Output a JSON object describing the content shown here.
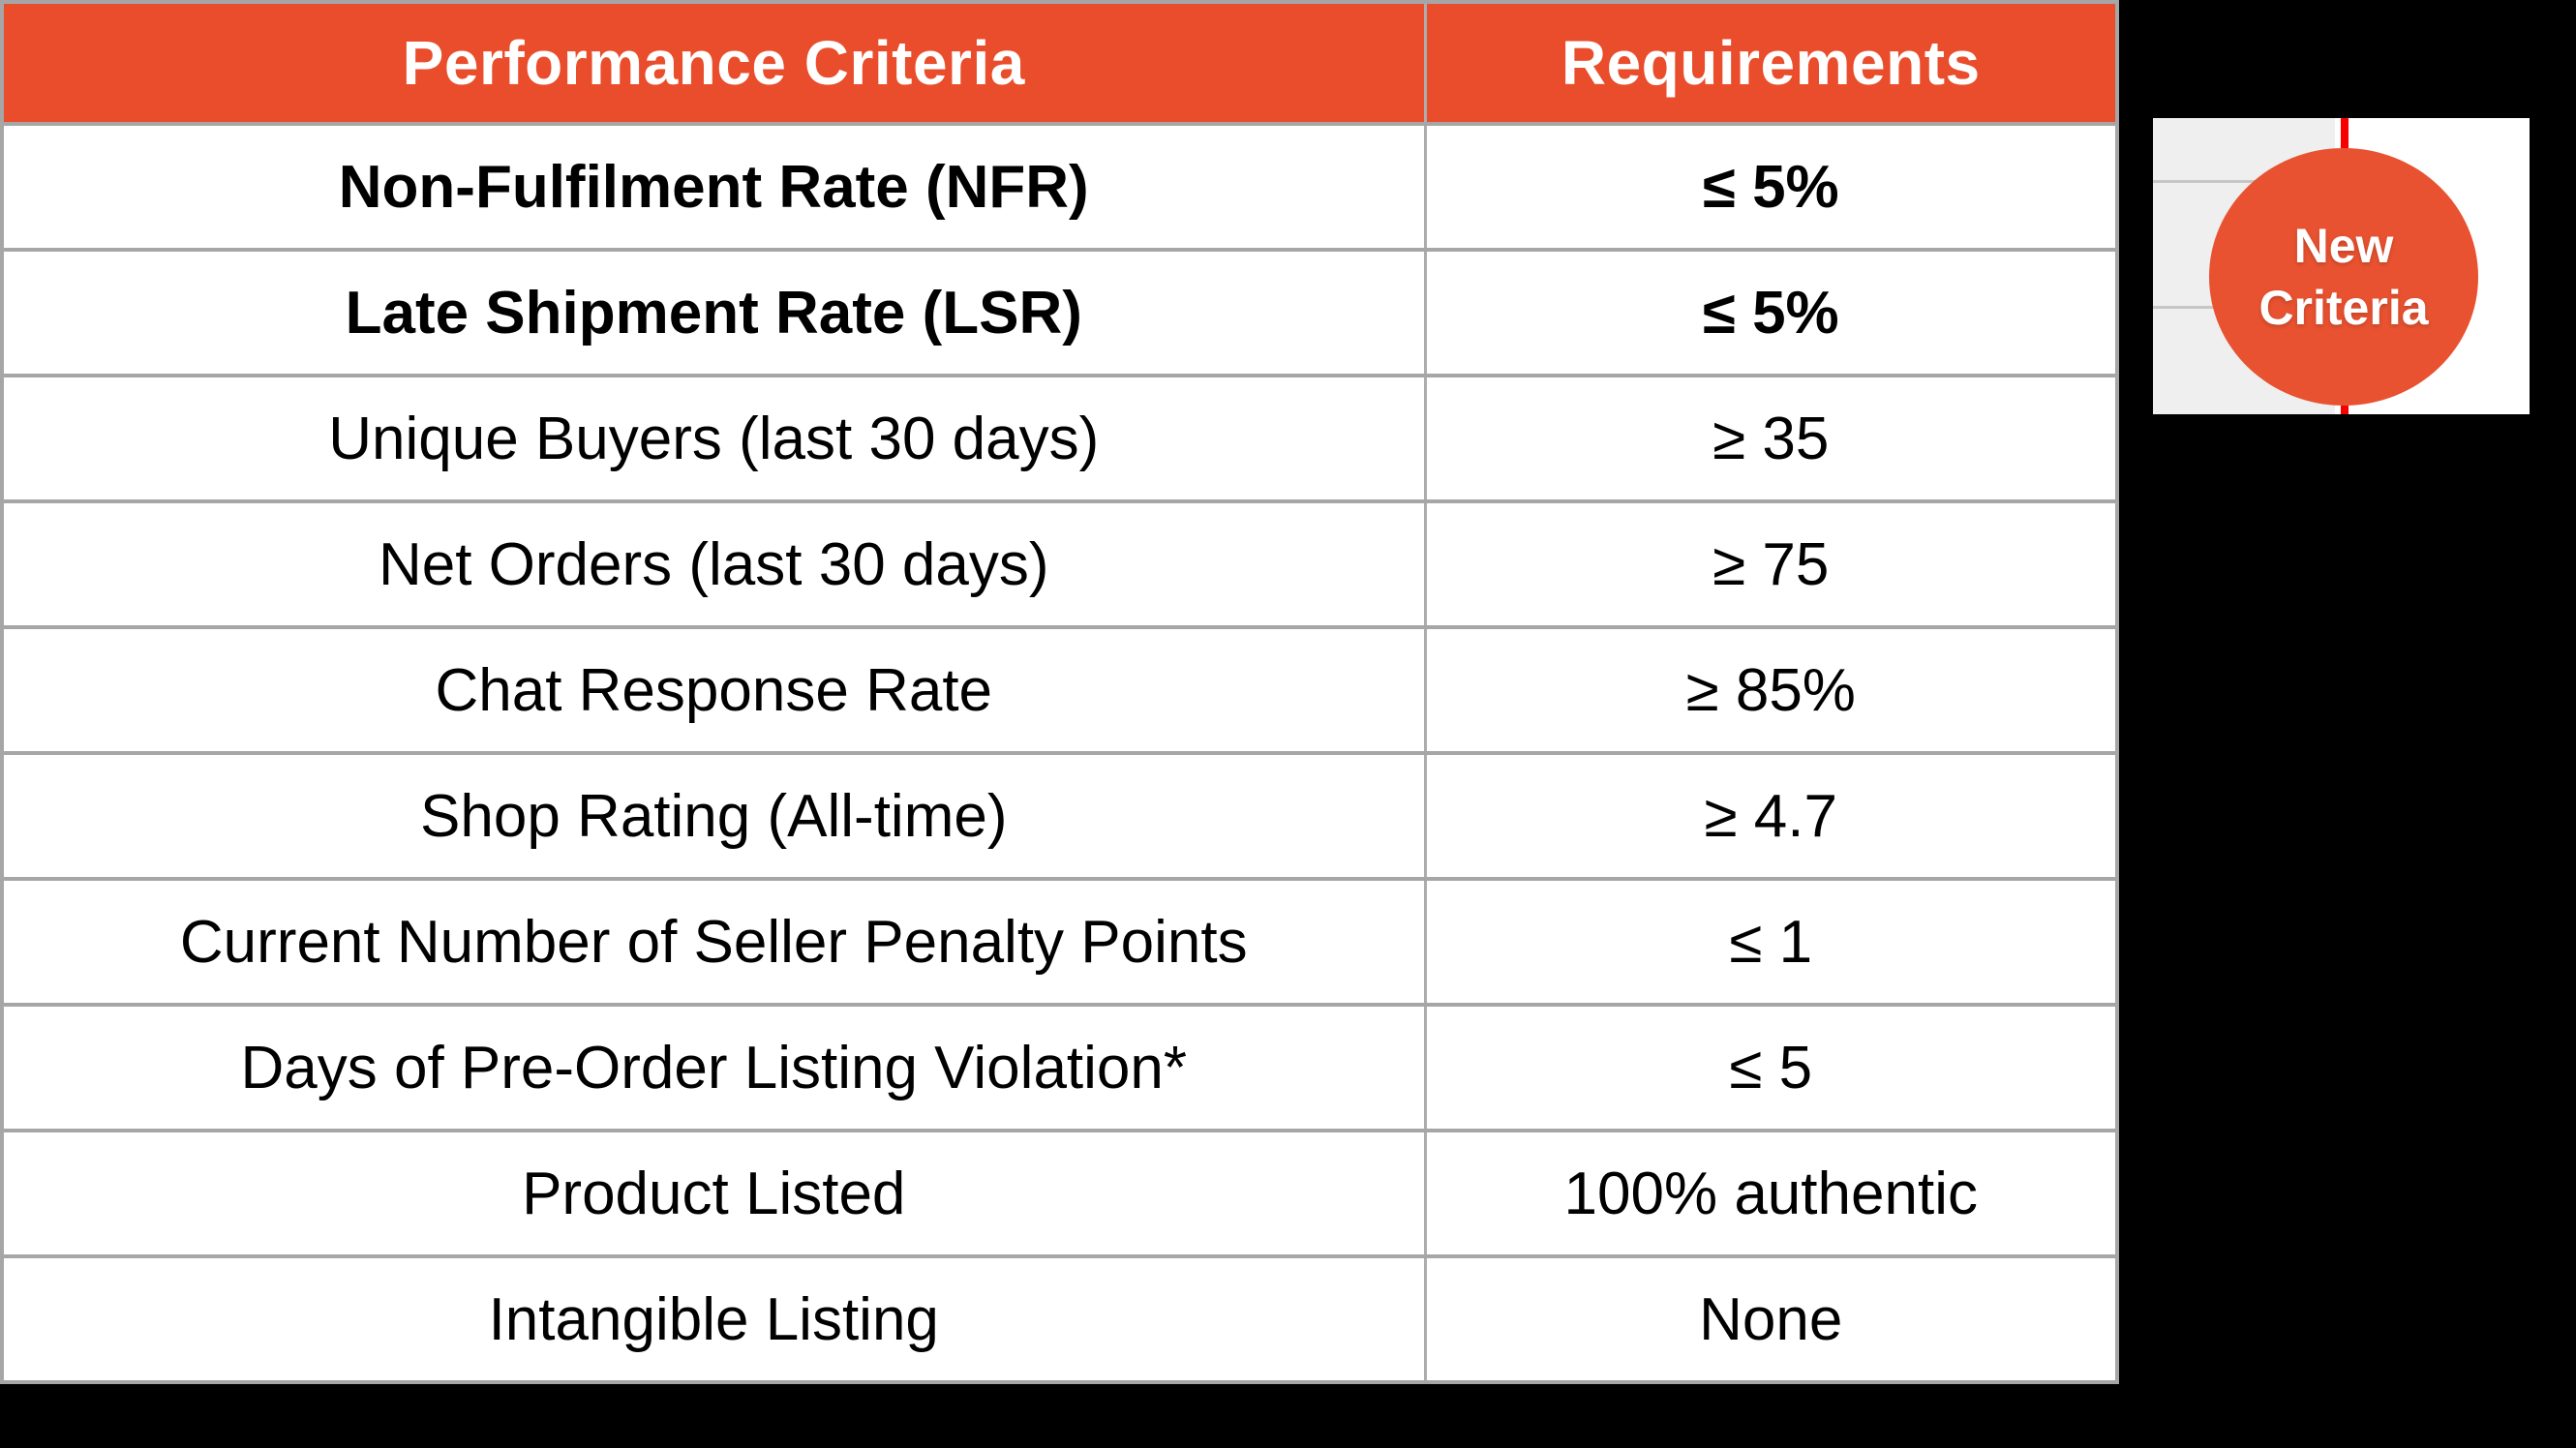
{
  "table": {
    "headers": [
      "Performance Criteria",
      "Requirements"
    ],
    "rows": [
      {
        "criteria": "Non-Fulfilment Rate (NFR)",
        "requirement": "≤ 5%"
      },
      {
        "criteria": "Late Shipment Rate (LSR)",
        "requirement": "≤ 5%"
      },
      {
        "criteria": "Unique Buyers (last 30 days)",
        "requirement": "≥ 35"
      },
      {
        "criteria": "Net Orders (last 30 days)",
        "requirement": "≥ 75"
      },
      {
        "criteria": "Chat Response Rate",
        "requirement": "≥ 85%"
      },
      {
        "criteria": "Shop Rating (All-time)",
        "requirement": "≥ 4.7"
      },
      {
        "criteria": "Current Number of Seller Penalty Points",
        "requirement": "≤ 1"
      },
      {
        "criteria": "Days of Pre-Order Listing Violation*",
        "requirement": "≤ 5"
      },
      {
        "criteria": "Product Listed",
        "requirement": "100% authentic"
      },
      {
        "criteria": "Intangible Listing",
        "requirement": "None"
      }
    ]
  },
  "badge": {
    "line1": "New",
    "line2": "Criteria"
  },
  "colors": {
    "header_bg": "#e94d2b",
    "badge_bg": "#e85230",
    "marker_red": "#f80000",
    "border_gray": "#a6a6a6",
    "card_gray": "#efefef",
    "background": "#000000"
  },
  "chart_data": {
    "type": "table",
    "title": "",
    "columns": [
      "Performance Criteria",
      "Requirements"
    ],
    "rows": [
      [
        "Non-Fulfilment Rate (NFR)",
        "≤ 5%"
      ],
      [
        "Late Shipment Rate (LSR)",
        "≤ 5%"
      ],
      [
        "Unique Buyers (last 30 days)",
        "≥ 35"
      ],
      [
        "Net Orders (last 30 days)",
        "≥ 75"
      ],
      [
        "Chat Response Rate",
        "≥ 85%"
      ],
      [
        "Shop Rating (All-time)",
        "≥ 4.7"
      ],
      [
        "Current Number of Seller Penalty Points",
        "≤ 1"
      ],
      [
        "Days of Pre-Order Listing Violation*",
        "≤ 5"
      ],
      [
        "Product Listed",
        "100% authentic"
      ],
      [
        "Intangible Listing",
        "None"
      ]
    ],
    "annotation": "New Criteria",
    "emphasized_rows": [
      0,
      1
    ]
  }
}
